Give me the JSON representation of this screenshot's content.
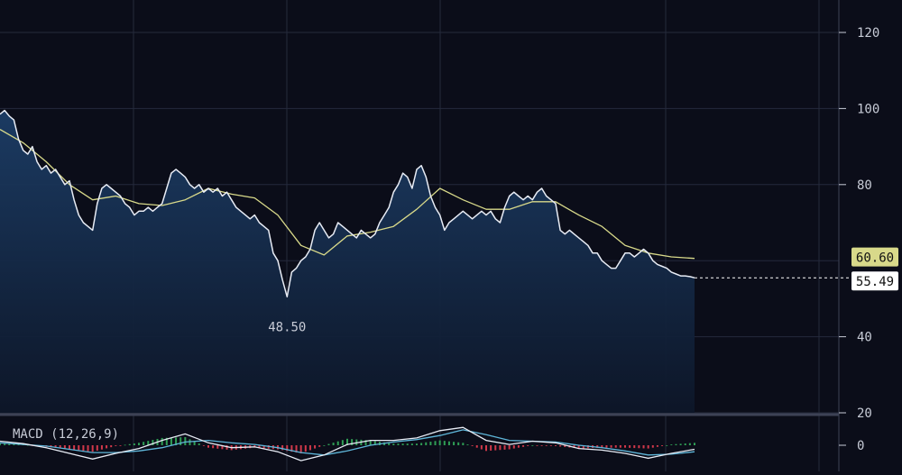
{
  "colors": {
    "background": "#0b0d19",
    "grid": "#252a3c",
    "price_line": "#e8ecf5",
    "ma_line": "#d8d98a",
    "area_top": "#1c3d66",
    "area_bottom": "#0d1628",
    "axis_text": "#c7cbd6",
    "macd_line": "#e8ecf5",
    "signal_line": "#5fb6d9",
    "hist_positive": "#2f9e55",
    "hist_negative": "#d0384a",
    "ma_badge_bg": "#d8d98a",
    "price_badge_bg": "#ffffff"
  },
  "chart_data": [
    {
      "type": "line",
      "title": "",
      "y_axis": {
        "ticks": [
          120,
          100,
          80,
          40,
          20
        ],
        "ylim": [
          20,
          128
        ]
      },
      "grid": true,
      "series": [
        {
          "name": "",
          "style": "area",
          "x": [
            0,
            2,
            4,
            6,
            8,
            10,
            12,
            14,
            16,
            18,
            20,
            22,
            24,
            26,
            28,
            30,
            32,
            34,
            36,
            38,
            40,
            42,
            44,
            46,
            48,
            50,
            52,
            54,
            56,
            58,
            60,
            62,
            64,
            66,
            68,
            70,
            72,
            74,
            76,
            78,
            80,
            82,
            84,
            86,
            88,
            90,
            92,
            94,
            96,
            98,
            100,
            102,
            104,
            106,
            108,
            110,
            112,
            114,
            116,
            118,
            120,
            122,
            124,
            126,
            128,
            130,
            132,
            134,
            136,
            138,
            140,
            142,
            144,
            146,
            148,
            150,
            152,
            154,
            156,
            158,
            160,
            162,
            164,
            166,
            168,
            170,
            172,
            174,
            176,
            178,
            180,
            182,
            184,
            186,
            188,
            190,
            192,
            194,
            196,
            198,
            200,
            202,
            204,
            206,
            208,
            210,
            212,
            214,
            216,
            218,
            220,
            222,
            224,
            226,
            228,
            230,
            232,
            234,
            236,
            238,
            240,
            242,
            244,
            246,
            248,
            250,
            252,
            254,
            256,
            258,
            260,
            262,
            264,
            266,
            268,
            270,
            272,
            274,
            276,
            278,
            280,
            282,
            284,
            286,
            288,
            290,
            292,
            294,
            296,
            298,
            300
          ],
          "values": [
            98.5,
            99.5,
            98,
            97,
            92,
            89,
            88,
            90,
            86,
            84,
            85,
            83,
            84,
            82,
            80,
            81,
            76,
            72,
            70,
            69,
            68,
            75,
            79,
            80,
            79,
            78,
            77,
            75,
            74,
            72,
            73,
            73,
            74,
            73,
            74,
            75,
            79,
            83,
            84,
            83,
            82,
            80,
            79,
            80,
            78,
            79,
            78,
            79,
            77,
            78,
            76,
            74,
            73,
            72,
            71,
            72,
            70,
            69,
            68,
            62,
            60,
            55,
            50.5,
            57,
            58,
            60,
            61,
            63,
            68,
            70,
            68,
            66,
            67,
            70,
            69,
            68,
            67,
            66,
            68,
            67,
            66,
            67,
            70,
            72,
            74,
            78,
            80,
            83,
            82,
            79,
            84,
            85,
            82,
            77,
            74,
            72,
            68,
            70,
            71,
            72,
            73,
            72,
            71,
            72,
            73,
            72,
            73,
            71,
            70,
            74,
            77,
            78,
            77,
            76,
            77,
            76,
            78,
            79,
            77,
            76,
            75,
            68,
            67,
            68,
            67,
            66,
            65,
            64,
            62,
            62,
            60,
            59,
            58,
            58,
            60,
            62,
            62,
            61,
            62,
            63,
            62,
            60,
            59,
            58.5,
            58,
            57,
            56.5,
            56,
            56,
            55.8,
            55.49
          ],
          "last_value_label": "55.49"
        },
        {
          "name": "",
          "style": "line",
          "x": [
            0,
            10,
            20,
            30,
            40,
            50,
            60,
            70,
            80,
            90,
            100,
            110,
            120,
            130,
            140,
            150,
            160,
            170,
            180,
            190,
            200,
            210,
            220,
            230,
            240,
            250,
            260,
            270,
            280,
            290,
            300
          ],
          "values": [
            94.5,
            91,
            86,
            80,
            76,
            77,
            75,
            74.5,
            76,
            79,
            77.5,
            76.5,
            72,
            64,
            61.5,
            66.5,
            67.5,
            69,
            73.5,
            79,
            76,
            73.5,
            73.5,
            75.5,
            75.5,
            72,
            69,
            64,
            62,
            61,
            60.6
          ],
          "last_value_label": "60.60"
        }
      ],
      "annotations": [
        {
          "text": "48.50",
          "x": 124,
          "y": 48.5
        }
      ]
    },
    {
      "type": "line",
      "title": "MACD (12,26,9)",
      "y_axis": {
        "ticks": [
          0
        ],
        "ylim": [
          -3,
          3
        ]
      },
      "grid": true,
      "series": [
        {
          "name": "",
          "style": "line",
          "x": [
            0,
            10,
            20,
            30,
            40,
            50,
            60,
            70,
            80,
            90,
            100,
            110,
            120,
            130,
            140,
            150,
            160,
            170,
            180,
            190,
            200,
            210,
            220,
            230,
            240,
            250,
            260,
            270,
            280,
            290,
            300
          ],
          "values": [
            0.5,
            0.2,
            -0.3,
            -1.0,
            -1.7,
            -1.0,
            -0.4,
            0.6,
            1.4,
            0.3,
            -0.3,
            -0.2,
            -0.8,
            -1.9,
            -1.2,
            0.1,
            0.6,
            0.6,
            0.9,
            1.8,
            2.2,
            0.6,
            0.1,
            0.5,
            0.3,
            -0.4,
            -0.6,
            -1.0,
            -1.6,
            -1.0,
            -0.5
          ]
        },
        {
          "name": "",
          "style": "line",
          "x": [
            0,
            10,
            20,
            30,
            40,
            50,
            60,
            70,
            80,
            90,
            100,
            110,
            120,
            130,
            140,
            150,
            160,
            170,
            180,
            190,
            200,
            210,
            220,
            230,
            240,
            250,
            260,
            270,
            280,
            290,
            300
          ],
          "values": [
            0.3,
            0.1,
            -0.1,
            -0.5,
            -0.9,
            -0.9,
            -0.7,
            -0.3,
            0.4,
            0.6,
            0.3,
            0.1,
            -0.3,
            -0.9,
            -1.2,
            -0.7,
            0.0,
            0.4,
            0.7,
            1.2,
            1.9,
            1.3,
            0.6,
            0.5,
            0.4,
            0.0,
            -0.3,
            -0.7,
            -1.2,
            -1.1,
            -0.8
          ]
        },
        {
          "name": "",
          "style": "histogram",
          "x": [
            0,
            10,
            20,
            30,
            40,
            50,
            60,
            70,
            80,
            90,
            100,
            110,
            120,
            130,
            140,
            150,
            160,
            170,
            180,
            190,
            200,
            210,
            220,
            230,
            240,
            250,
            260,
            270,
            280,
            290,
            300
          ],
          "values": [
            0.2,
            0.1,
            -0.2,
            -0.5,
            -0.8,
            -0.1,
            0.3,
            0.9,
            1.0,
            -0.3,
            -0.6,
            -0.3,
            -0.5,
            -1.0,
            0.0,
            0.8,
            0.6,
            0.2,
            0.2,
            0.6,
            0.3,
            -0.7,
            -0.5,
            0.0,
            -0.1,
            -0.4,
            -0.3,
            -0.3,
            -0.4,
            0.1,
            0.3
          ]
        }
      ]
    }
  ]
}
